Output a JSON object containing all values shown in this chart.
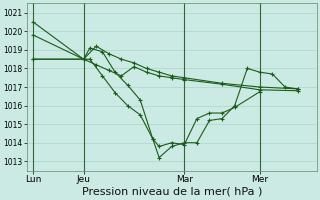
{
  "background_color": "#cceae4",
  "grid_color": "#aad4cc",
  "line_color": "#1a5c1a",
  "vline_color": "#336633",
  "xlabel": "Pression niveau de la mer( hPa )",
  "xlabel_fontsize": 8,
  "ylim": [
    1012.5,
    1021.5
  ],
  "yticks": [
    1013,
    1014,
    1015,
    1016,
    1017,
    1018,
    1019,
    1020,
    1021
  ],
  "ytick_fontsize": 5.5,
  "xtick_fontsize": 6.5,
  "xtick_labels": [
    "Lun",
    "Jeu",
    "Mar",
    "Mer"
  ],
  "xtick_positions": [
    0,
    16,
    48,
    72
  ],
  "vline_positions": [
    0,
    16,
    48,
    72
  ],
  "xlim": [
    -2,
    90
  ],
  "series_x": [
    [
      0,
      16,
      20,
      24,
      28,
      32,
      36,
      40,
      44,
      48,
      60,
      72,
      84
    ],
    [
      0,
      16,
      20,
      24,
      28,
      32,
      36,
      40,
      44,
      48,
      60,
      72,
      84
    ],
    [
      0,
      16,
      18,
      22,
      26,
      30,
      34,
      38,
      40,
      44,
      48,
      52,
      56,
      60,
      64,
      72
    ],
    [
      0,
      16,
      18,
      22,
      26,
      30,
      34,
      38,
      40,
      44,
      48,
      52,
      56,
      60,
      64,
      68,
      72,
      76,
      80,
      84
    ]
  ],
  "series_y": [
    [
      1020.5,
      1018.5,
      1019.2,
      1018.8,
      1018.5,
      1018.3,
      1018.0,
      1017.8,
      1017.6,
      1017.5,
      1017.2,
      1017.0,
      1016.9
    ],
    [
      1019.8,
      1018.5,
      1018.2,
      1017.9,
      1017.6,
      1018.1,
      1017.8,
      1017.6,
      1017.5,
      1017.4,
      1017.15,
      1016.85,
      1016.8
    ],
    [
      1018.5,
      1018.5,
      1019.1,
      1018.9,
      1017.8,
      1017.1,
      1016.3,
      1014.2,
      1013.8,
      1014.0,
      1013.9,
      1015.3,
      1015.6,
      1015.6,
      1015.9,
      1016.75
    ],
    [
      1018.5,
      1018.5,
      1018.5,
      1017.6,
      1016.7,
      1016.0,
      1015.5,
      1014.2,
      1013.2,
      1013.8,
      1014.0,
      1014.0,
      1015.2,
      1015.3,
      1016.0,
      1018.0,
      1017.8,
      1017.7,
      1017.0,
      1016.9
    ]
  ]
}
